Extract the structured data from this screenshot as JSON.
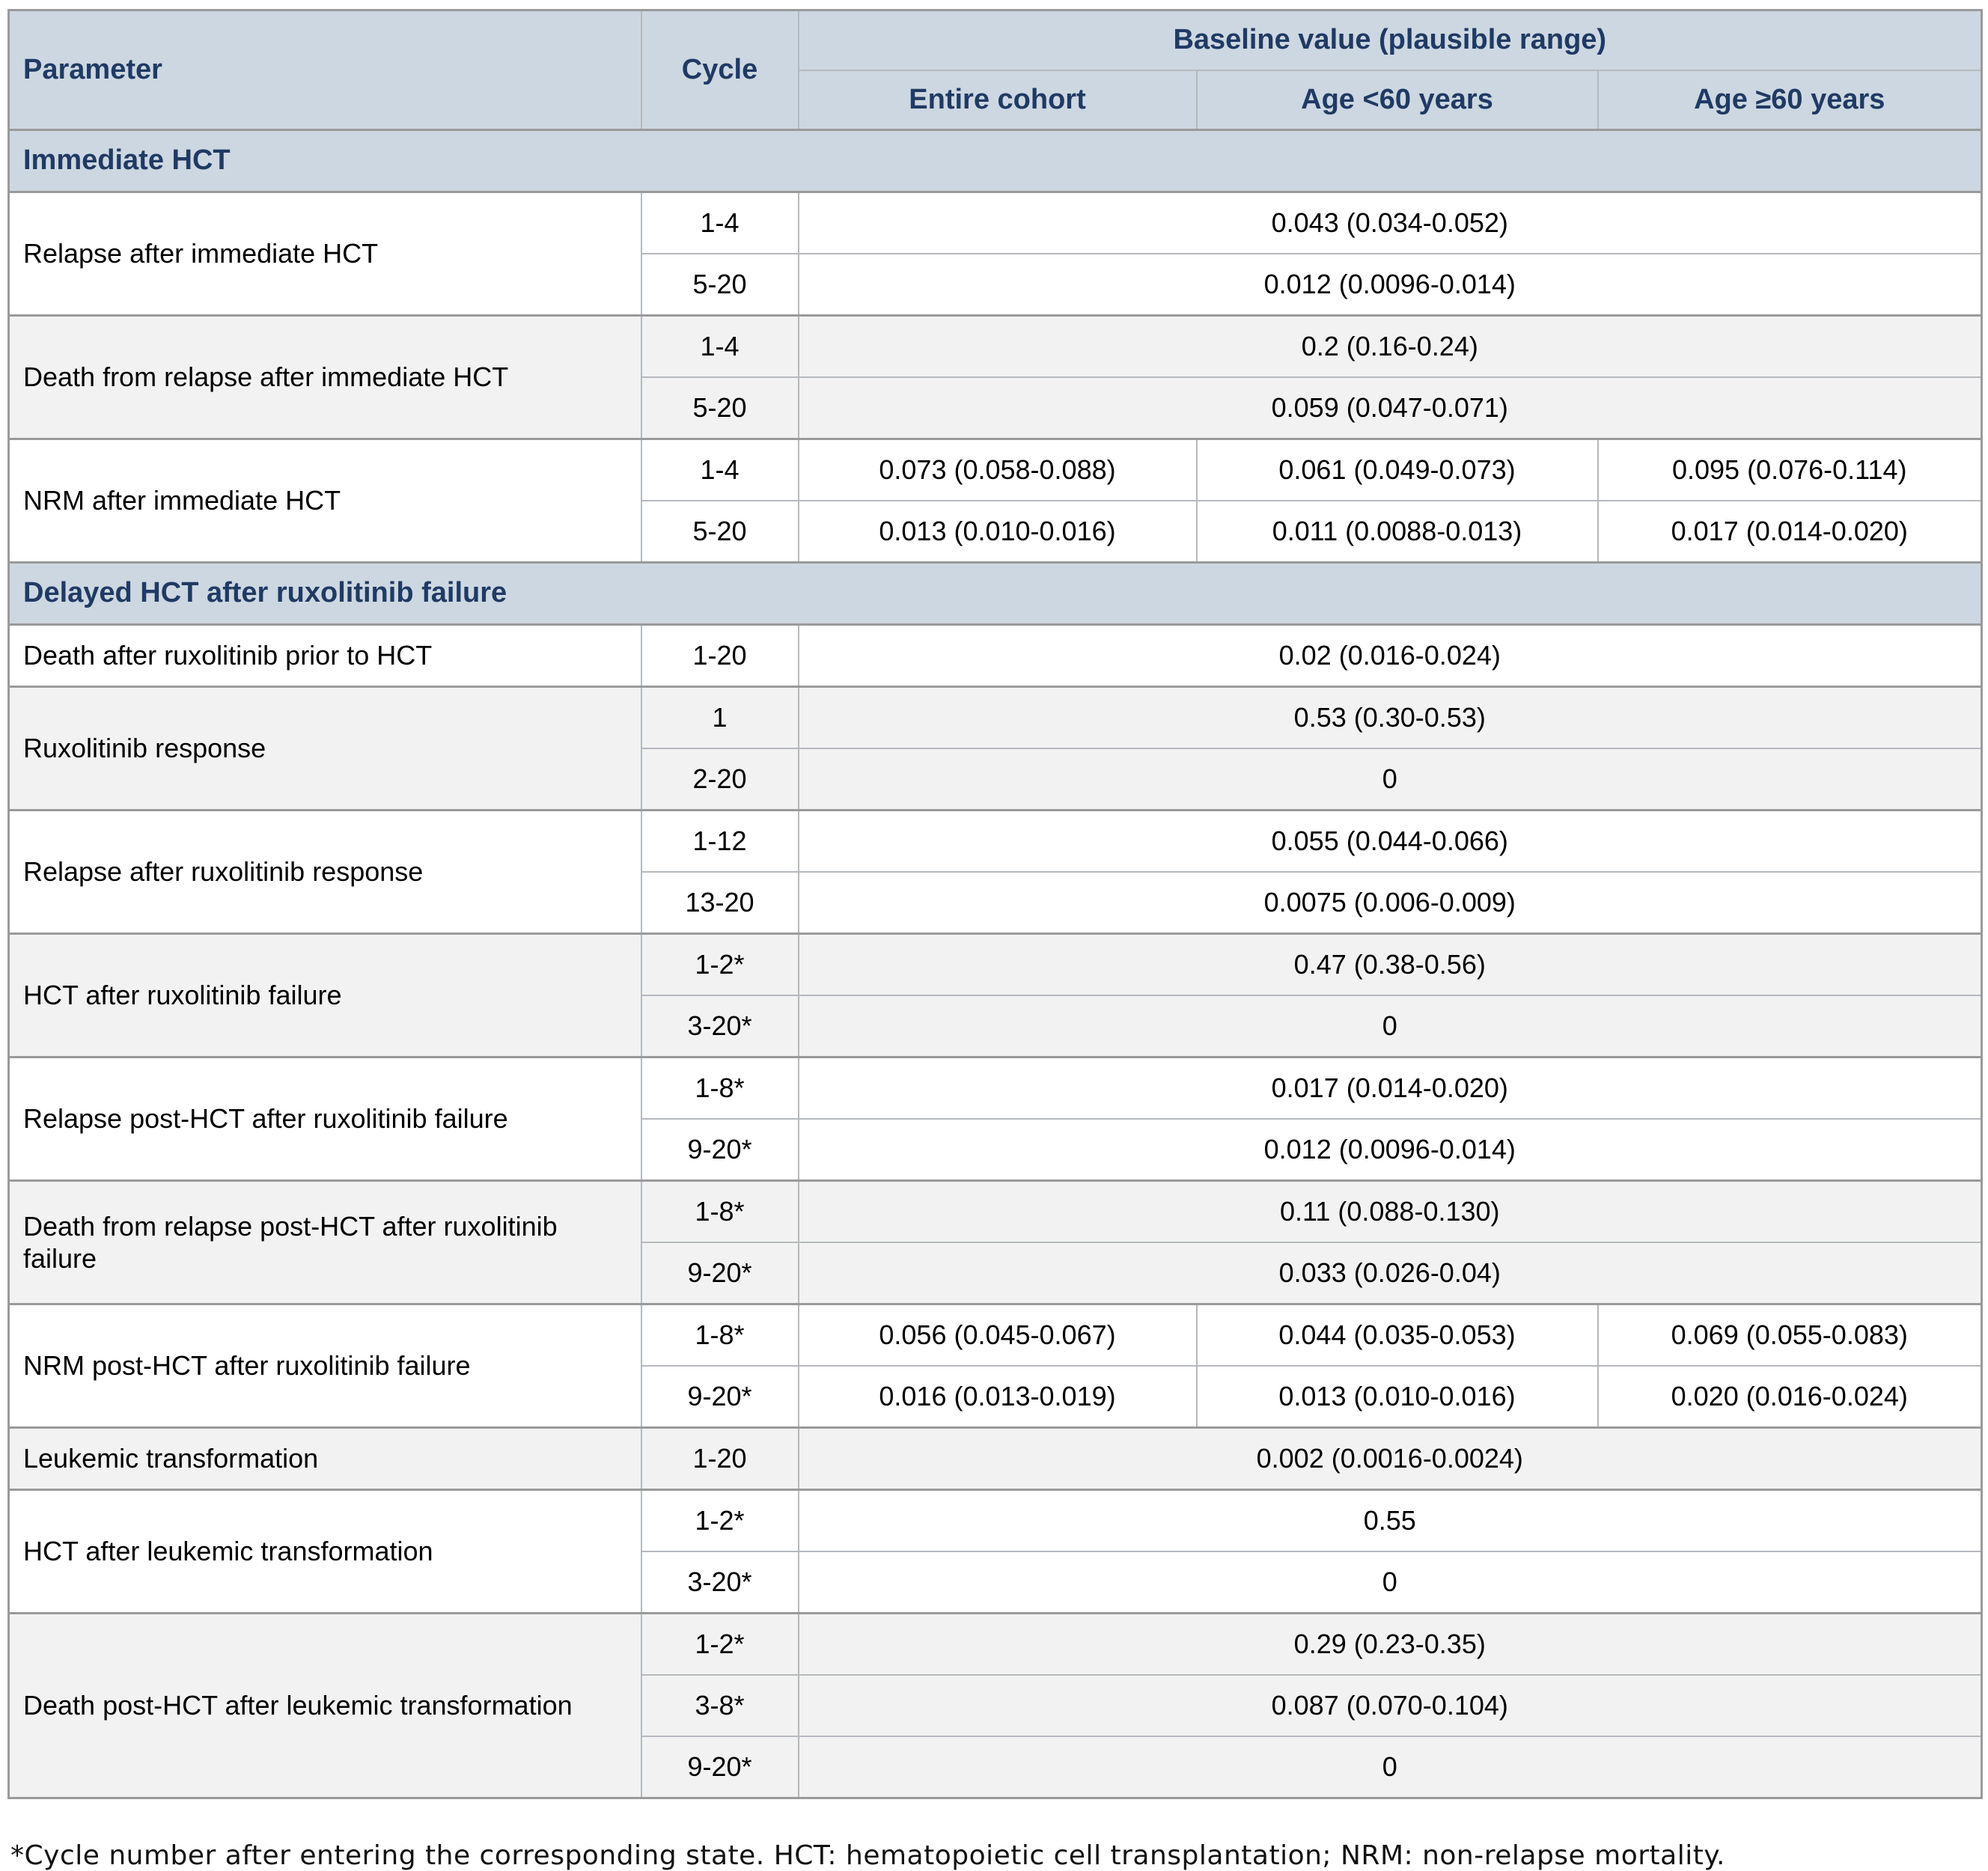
{
  "table": {
    "header": {
      "parameter": "Parameter",
      "cycle": "Cycle",
      "baseline_group": "Baseline value (plausible range)",
      "columns": [
        "Entire cohort",
        "Age <60 years",
        "Age ≥60 years"
      ]
    },
    "sections": [
      {
        "title": "Immediate HCT",
        "rows": [
          {
            "parameter": "Relapse after immediate HCT",
            "cycles": [
              {
                "cycle": "1-4",
                "values": [
                  "0.043 (0.034-0.052)"
                ]
              },
              {
                "cycle": "5-20",
                "values": [
                  "0.012 (0.0096-0.014)"
                ]
              }
            ]
          },
          {
            "parameter": "Death from relapse after immediate HCT",
            "cycles": [
              {
                "cycle": "1-4",
                "values": [
                  "0.2 (0.16-0.24)"
                ]
              },
              {
                "cycle": "5-20",
                "values": [
                  "0.059 (0.047-0.071)"
                ]
              }
            ]
          },
          {
            "parameter": "NRM after immediate HCT",
            "cycles": [
              {
                "cycle": "1-4",
                "values": [
                  "0.073 (0.058-0.088)",
                  "0.061 (0.049-0.073)",
                  "0.095 (0.076-0.114)"
                ]
              },
              {
                "cycle": "5-20",
                "values": [
                  "0.013 (0.010-0.016)",
                  "0.011 (0.0088-0.013)",
                  "0.017 (0.014-0.020)"
                ]
              }
            ]
          }
        ]
      },
      {
        "title": "Delayed HCT after ruxolitinib failure",
        "rows": [
          {
            "parameter": "Death after ruxolitinib prior to HCT",
            "cycles": [
              {
                "cycle": "1-20",
                "values": [
                  "0.02 (0.016-0.024)"
                ]
              }
            ]
          },
          {
            "parameter": "Ruxolitinib response",
            "cycles": [
              {
                "cycle": "1",
                "values": [
                  "0.53 (0.30-0.53)"
                ]
              },
              {
                "cycle": "2-20",
                "values": [
                  "0"
                ]
              }
            ]
          },
          {
            "parameter": "Relapse after ruxolitinib response",
            "cycles": [
              {
                "cycle": "1-12",
                "values": [
                  "0.055 (0.044-0.066)"
                ]
              },
              {
                "cycle": "13-20",
                "values": [
                  "0.0075 (0.006-0.009)"
                ]
              }
            ]
          },
          {
            "parameter": "HCT after ruxolitinib failure",
            "cycles": [
              {
                "cycle": "1-2*",
                "values": [
                  "0.47 (0.38-0.56)"
                ]
              },
              {
                "cycle": "3-20*",
                "values": [
                  "0"
                ]
              }
            ]
          },
          {
            "parameter": "Relapse post-HCT after ruxolitinib failure",
            "cycles": [
              {
                "cycle": "1-8*",
                "values": [
                  "0.017 (0.014-0.020)"
                ]
              },
              {
                "cycle": "9-20*",
                "values": [
                  "0.012 (0.0096-0.014)"
                ]
              }
            ]
          },
          {
            "parameter": "Death from relapse post-HCT after ruxolitinib failure",
            "cycles": [
              {
                "cycle": "1-8*",
                "values": [
                  "0.11 (0.088-0.130)"
                ]
              },
              {
                "cycle": "9-20*",
                "values": [
                  "0.033 (0.026-0.04)"
                ]
              }
            ]
          },
          {
            "parameter": "NRM post-HCT after ruxolitinib failure",
            "cycles": [
              {
                "cycle": "1-8*",
                "values": [
                  "0.056 (0.045-0.067)",
                  "0.044 (0.035-0.053)",
                  "0.069 (0.055-0.083)"
                ]
              },
              {
                "cycle": "9-20*",
                "values": [
                  "0.016 (0.013-0.019)",
                  "0.013 (0.010-0.016)",
                  "0.020 (0.016-0.024)"
                ]
              }
            ]
          },
          {
            "parameter": "Leukemic transformation",
            "cycles": [
              {
                "cycle": "1-20",
                "values": [
                  "0.002 (0.0016-0.0024)"
                ]
              }
            ]
          },
          {
            "parameter": "HCT after leukemic transformation",
            "cycles": [
              {
                "cycle": "1-2*",
                "values": [
                  "0.55"
                ]
              },
              {
                "cycle": "3-20*",
                "values": [
                  "0"
                ]
              }
            ]
          },
          {
            "parameter": "Death post-HCT after leukemic transformation",
            "cycles": [
              {
                "cycle": "1-2*",
                "values": [
                  "0.29 (0.23-0.35)"
                ]
              },
              {
                "cycle": "3-8*",
                "values": [
                  "0.087 (0.070-0.104)"
                ]
              },
              {
                "cycle": "9-20*",
                "values": [
                  "0"
                ]
              }
            ]
          }
        ]
      }
    ],
    "footnote": "*Cycle number after entering the corresponding state. HCT: hematopoietic cell transplantation; NRM: non-relapse mortality."
  },
  "colors": {
    "header_bg": "#cdd7e1",
    "header_text": "#1f3a64",
    "row_alt_bg": "#f2f2f2",
    "border_thick": "#9a9a9a",
    "border_thin": "#b5b9be"
  }
}
